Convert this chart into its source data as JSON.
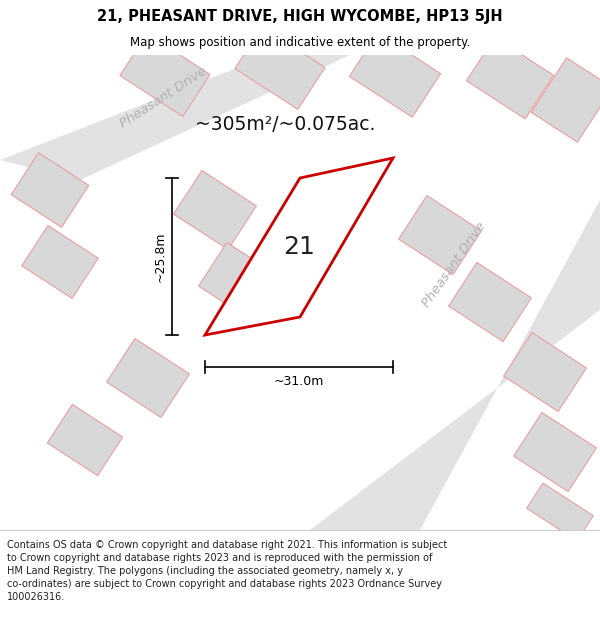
{
  "title": "21, PHEASANT DRIVE, HIGH WYCOMBE, HP13 5JH",
  "subtitle": "Map shows position and indicative extent of the property.",
  "footer": "Contains OS data © Crown copyright and database right 2021. This information is subject\nto Crown copyright and database rights 2023 and is reproduced with the permission of\nHM Land Registry. The polygons (including the associated geometry, namely x, y\nco-ordinates) are subject to Crown copyright and database rights 2023 Ordnance Survey\n100026316.",
  "area_label": "~305m²/~0.075ac.",
  "width_label": "~31.0m",
  "height_label": "~25.8m",
  "plot_number": "21",
  "bg_color": "#efefef",
  "outline_color": "#e8a0a0",
  "main_plot_color": "#cc0000",
  "road_label_color": "#b0b0b0",
  "road_band_color": "#e2e2e2",
  "bld_fill": "#d8d8d8",
  "title_color": "#000000",
  "dim_color": "#000000"
}
